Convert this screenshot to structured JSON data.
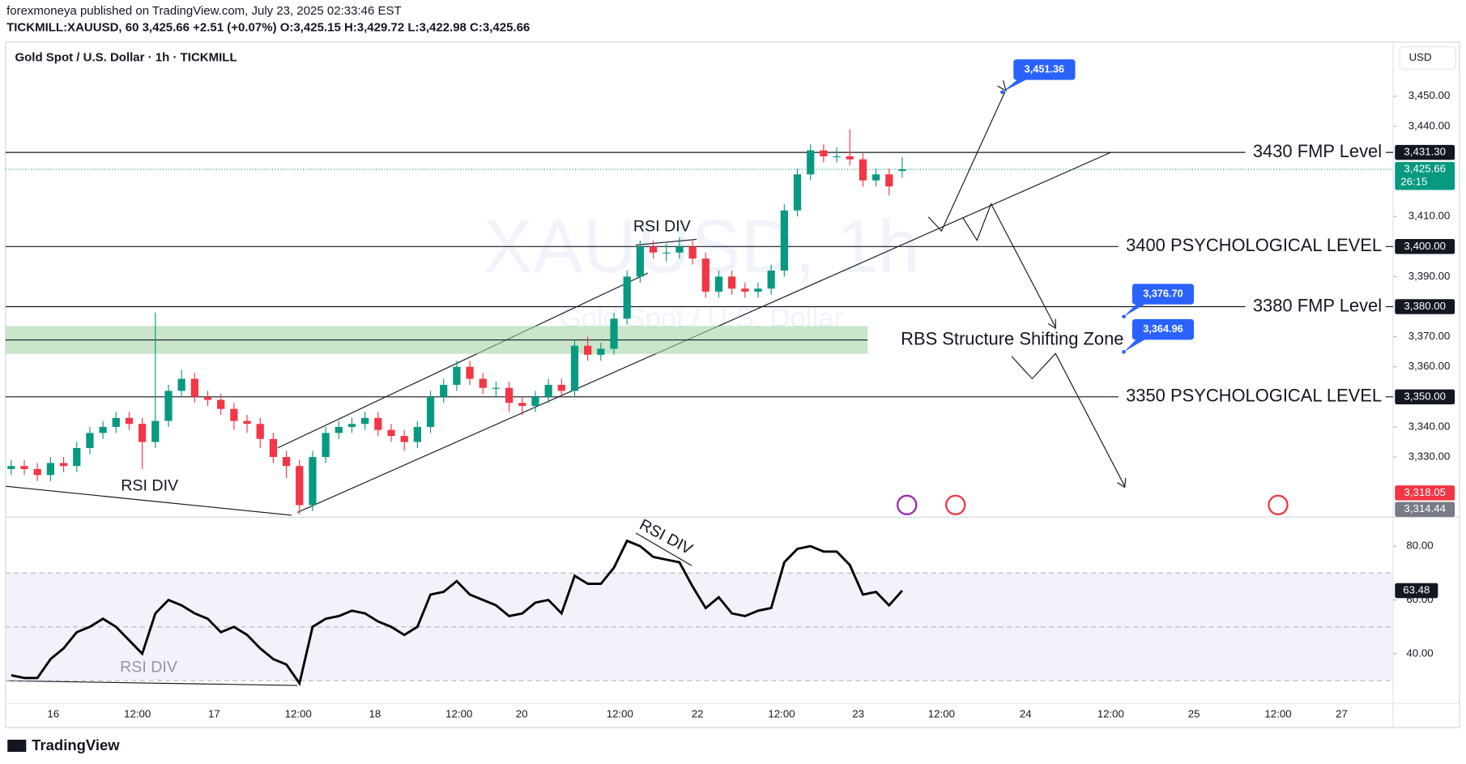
{
  "header": {
    "publisher": "forexmoneya published on TradingView.com, July 23, 2025 02:33:46 EST",
    "symbol_line": "TICKMILL:XAUUSD, 60 3,425.66 +2.51 (+0.07%) O:3,425.15 H:3,429.72 L:3,422.98 C:3,425.66"
  },
  "footer": {
    "brand": "TradingView"
  },
  "chart_data": {
    "type": "candlestick",
    "title": "Gold Spot / U.S. Dollar · 1h · TICKMILL",
    "currency": "USD",
    "watermark": "XAUUSD, 1h",
    "watermark_sub": "Gold Spot / U.S. Dollar",
    "x_labels": [
      "16",
      "12:00",
      "17",
      "12:00",
      "18",
      "12:00",
      "20",
      "12:00",
      "22",
      "12:00",
      "23",
      "12:00",
      "24",
      "12:00",
      "25",
      "12:00",
      "27"
    ],
    "up_color": "#089981",
    "down_color": "#f23645",
    "open": [
      3326,
      3327,
      3326,
      3324,
      3328,
      3327,
      3333,
      3338,
      3340,
      3343,
      3341,
      3335,
      3342,
      3352,
      3356,
      3350,
      3349,
      3346,
      3342,
      3341,
      3336,
      3330,
      3327,
      3314,
      3330,
      3338,
      3340,
      3341,
      3343,
      3339,
      3337,
      3335,
      3340,
      3350,
      3354,
      3360,
      3356,
      3353,
      3353,
      3348,
      3347,
      3350,
      3354,
      3352,
      3367,
      3364,
      3366,
      3376,
      3390,
      3400,
      3398,
      3398,
      3400,
      3396,
      3385,
      3390,
      3386,
      3385,
      3386,
      3392,
      3412,
      3424,
      3432,
      3430,
      3430,
      3429,
      3422,
      3424,
      3425.15
    ],
    "high": [
      3329,
      3329,
      3328,
      3330,
      3330,
      3335,
      3340,
      3342,
      3345,
      3345,
      3343,
      3378,
      3354,
      3359,
      3358,
      3352,
      3351,
      3348,
      3344,
      3343,
      3338,
      3332,
      3329,
      3332,
      3340,
      3342,
      3343,
      3345,
      3345,
      3341,
      3339,
      3342,
      3352,
      3356,
      3362,
      3362,
      3358,
      3355,
      3355,
      3350,
      3352,
      3356,
      3356,
      3369,
      3370,
      3368,
      3378,
      3392,
      3402,
      3402,
      3401,
      3403,
      3402,
      3398,
      3392,
      3392,
      3388,
      3388,
      3394,
      3414,
      3426,
      3434,
      3434,
      3433,
      3439,
      3431,
      3426,
      3426,
      3429.72
    ],
    "low": [
      3324,
      3324,
      3322,
      3322,
      3325,
      3325,
      3331,
      3336,
      3338,
      3339,
      3326,
      3333,
      3340,
      3350,
      3348,
      3347,
      3344,
      3339,
      3338,
      3333,
      3328,
      3323,
      3311,
      3312,
      3328,
      3336,
      3338,
      3339,
      3337,
      3335,
      3332,
      3333,
      3338,
      3348,
      3352,
      3354,
      3351,
      3350,
      3345,
      3344,
      3345,
      3348,
      3350,
      3350,
      3362,
      3362,
      3364,
      3374,
      3388,
      3396,
      3395,
      3396,
      3394,
      3383,
      3383,
      3384,
      3383,
      3383,
      3384,
      3390,
      3410,
      3422,
      3428,
      3428,
      3427,
      3420,
      3420,
      3417,
      3422.98
    ],
    "close": [
      3327,
      3326,
      3324,
      3328,
      3327,
      3333,
      3338,
      3340,
      3343,
      3341,
      3335,
      3342,
      3352,
      3356,
      3350,
      3349,
      3346,
      3342,
      3341,
      3336,
      3330,
      3327,
      3314,
      3330,
      3338,
      3340,
      3341,
      3343,
      3339,
      3337,
      3335,
      3340,
      3350,
      3354,
      3360,
      3356,
      3353,
      3353,
      3348,
      3347,
      3350,
      3354,
      3352,
      3367,
      3364,
      3366,
      3376,
      3390,
      3400,
      3398,
      3398,
      3400,
      3396,
      3385,
      3390,
      3386,
      3385,
      3386,
      3392,
      3412,
      3424,
      3432,
      3430,
      3430,
      3429,
      3422,
      3424,
      3420,
      3425.66
    ],
    "ylim": [
      3310,
      3468
    ],
    "yticks": [
      {
        "value": 3450,
        "label": "3,450.00"
      },
      {
        "value": 3440,
        "label": "3,440.00"
      },
      {
        "value": 3410,
        "label": "3,410.00"
      },
      {
        "value": 3390,
        "label": "3,390.00"
      },
      {
        "value": 3370,
        "label": "3,370.00"
      },
      {
        "value": 3360,
        "label": "3,360.00"
      },
      {
        "value": 3340,
        "label": "3,340.00"
      },
      {
        "value": 3330,
        "label": "3,330.00"
      }
    ],
    "grid": false,
    "levels": [
      {
        "value": 3431.3,
        "label": "3430 FMP Level",
        "badge": "3,431.30"
      },
      {
        "value": 3400,
        "label": "3400 PSYCHOLOGICAL LEVEL",
        "badge": "3,400.00"
      },
      {
        "value": 3380,
        "label": "3380 FMP Level",
        "badge": "3,380.00"
      },
      {
        "value": 3350,
        "label": "3350 PSYCHOLOGICAL LEVEL",
        "badge": "3,350.00"
      }
    ],
    "zone": {
      "low": 3364.3,
      "high": 3373.6,
      "label": "RBS Structure Shifting Zone",
      "color": "#a5d6a7"
    },
    "targets": [
      {
        "value": 3451.36,
        "label": "3,451.36"
      },
      {
        "value": 3376.7,
        "label": "3,376.70"
      },
      {
        "value": 3364.96,
        "label": "3,364.96"
      }
    ],
    "current": {
      "value": 3425.66,
      "label": "3,425.66",
      "countdown": "26:15"
    },
    "extra_badges": [
      {
        "value": 3318.05,
        "label": "3,318.05",
        "color": "#f23645"
      },
      {
        "value": 3314.44,
        "label": "3,314.44",
        "color": "#787b86"
      }
    ],
    "annotations": [
      "RSI DIV",
      "RSI DIV",
      "RSI DIV"
    ],
    "rsi": {
      "values": [
        32,
        31,
        31,
        38,
        42,
        48,
        50,
        53,
        50,
        45,
        40,
        55,
        60,
        58,
        55,
        53,
        48,
        50,
        47,
        42,
        38,
        36,
        29,
        50,
        53,
        54,
        56,
        55,
        52,
        50,
        47,
        50,
        62,
        63,
        67,
        62,
        60,
        58,
        54,
        55,
        59,
        60,
        55,
        69,
        66,
        66,
        72,
        82,
        80,
        76,
        75,
        74,
        65,
        57,
        61,
        55,
        54,
        56,
        57,
        74,
        79,
        80,
        78,
        78,
        73,
        62,
        63,
        58,
        63.48
      ],
      "value_label": "63.48",
      "ylim": [
        21.6,
        90.8
      ],
      "yticks": [
        {
          "value": 80,
          "label": "80.00"
        },
        {
          "value": 60,
          "label": "60.00"
        },
        {
          "value": 40,
          "label": "40.00"
        }
      ],
      "levels": [
        70,
        50,
        30
      ],
      "band": [
        30,
        70
      ],
      "band_color": "#ede7f6"
    }
  }
}
